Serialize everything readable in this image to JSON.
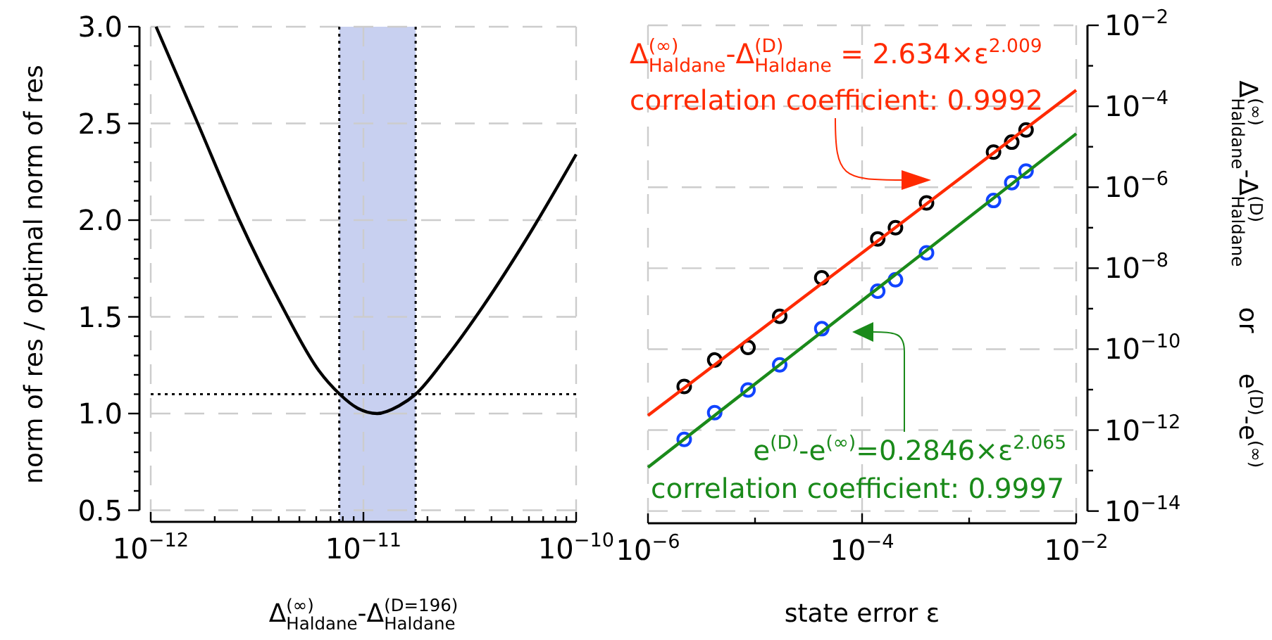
{
  "chart_data": [
    {
      "type": "line",
      "xlabel": "Δ$^{(∞)}$$_{Haldane}$-Δ$^{(D=196)}$$_{Haldane}$",
      "ylabel": "norm of res / optimal norm of res",
      "log": "x",
      "grid": true,
      "xlim": [
        1e-12,
        1e-10
      ],
      "xticks": [
        {
          "value": 1e-12,
          "label": "10$^{−12}$"
        },
        {
          "value": 2e-12,
          "label": null
        },
        {
          "value": 3e-12,
          "label": null
        },
        {
          "value": 4e-12,
          "label": null
        },
        {
          "value": 5e-12,
          "label": null
        },
        {
          "value": 6e-12,
          "label": null
        },
        {
          "value": 7e-12,
          "label": null
        },
        {
          "value": 8e-12,
          "label": null
        },
        {
          "value": 9e-12,
          "label": null
        },
        {
          "value": 1e-11,
          "label": "10$^{−11}$"
        },
        {
          "value": 2e-11,
          "label": null
        },
        {
          "value": 3e-11,
          "label": null
        },
        {
          "value": 4e-11,
          "label": null
        },
        {
          "value": 5e-11,
          "label": null
        },
        {
          "value": 6e-11,
          "label": null
        },
        {
          "value": 7e-11,
          "label": null
        },
        {
          "value": 8e-11,
          "label": null
        },
        {
          "value": 9e-11,
          "label": null
        },
        {
          "value": 1e-10,
          "label": "10$^{−10}$"
        }
      ],
      "ylim": [
        0.44,
        3.0
      ],
      "yticks": [
        0.5,
        {
          "value": 0.6,
          "label": null
        },
        {
          "value": 0.7,
          "label": null
        },
        {
          "value": 0.8,
          "label": null
        },
        {
          "value": 0.9,
          "label": null
        },
        {
          "value": 1,
          "label": "1.0"
        },
        {
          "value": 1.1,
          "label": null
        },
        {
          "value": 1.2,
          "label": null
        },
        {
          "value": 1.3,
          "label": null
        },
        {
          "value": 1.4,
          "label": null
        },
        1.5,
        {
          "value": 1.6,
          "label": null
        },
        {
          "value": 1.7,
          "label": null
        },
        {
          "value": 1.8,
          "label": null
        },
        {
          "value": 1.9,
          "label": null
        },
        {
          "value": 2,
          "label": "2.0"
        },
        {
          "value": 2.1,
          "label": null
        },
        {
          "value": 2.2,
          "label": null
        },
        {
          "value": 2.3,
          "label": null
        },
        {
          "value": 2.4,
          "label": null
        },
        2.5,
        {
          "value": 2.6,
          "label": null
        },
        {
          "value": 2.7,
          "label": null
        },
        {
          "value": 2.8,
          "label": null
        },
        {
          "value": 2.9,
          "label": null
        },
        {
          "value": 3,
          "label": "3.0"
        }
      ],
      "x": [
        1.06e-12,
        1.65e-12,
        2.61e-12,
        4.12e-12,
        6.19e-12,
        7.74e-12,
        9.31e-12,
        1.16e-11,
        1.47e-11,
        1.76e-11,
        2.45e-11,
        3.68e-11,
        5.82e-11,
        1e-10
      ],
      "series": [
        {
          "color": "#000000",
          "values": [
            3.0,
            2.51,
            2.0,
            1.56,
            1.22,
            1.1,
            1.03,
            1.0,
            1.04,
            1.1,
            1.29,
            1.56,
            1.9,
            2.34
          ]
        }
      ],
      "ref_lines": [
        {
          "axis": "y",
          "value": 1.1,
          "line_style": "dotted",
          "color": "#000000"
        },
        {
          "axis": "x",
          "value": 7.7e-12,
          "line_style": "dotted",
          "color": "#000000"
        },
        {
          "axis": "x",
          "value": 1.76e-11,
          "line_style": "dotted",
          "color": "#000000"
        }
      ],
      "bands": [
        {
          "axis": "x",
          "from": 7.7e-12,
          "to": 1.76e-11,
          "color": "#c8d0f0"
        }
      ]
    },
    {
      "type": "scatter",
      "xlabel": "state error ε",
      "ylabel": "Δ$^{(∞)}$$_{Haldane}$-Δ$^{(D)}$$_{Haldane}$     or     e$^{(D)}$-e$^{(∞)}$",
      "log": "xy",
      "grid": true,
      "xlim": [
        1e-06,
        0.01
      ],
      "xticks": [
        {
          "value": 1e-06,
          "label": "10$^{−6}$"
        },
        {
          "value": 1e-05,
          "label": null
        },
        {
          "value": 0.0001,
          "label": "10$^{−4}$"
        },
        {
          "value": 0.001,
          "label": null
        },
        {
          "value": 0.01,
          "label": "10$^{−2}$"
        }
      ],
      "ylim": [
        5e-15,
        0.01
      ],
      "yticks": [
        {
          "value": 0.01,
          "label": "10$^{−2}$"
        },
        {
          "value": 0.001,
          "label": null
        },
        {
          "value": 0.0001,
          "label": "10$^{−4}$"
        },
        {
          "value": 1e-05,
          "label": null
        },
        {
          "value": 1e-06,
          "label": "10$^{−6}$"
        },
        {
          "value": 1e-07,
          "label": null
        },
        {
          "value": 1e-08,
          "label": "10$^{−8}$"
        },
        {
          "value": 1e-09,
          "label": null
        },
        {
          "value": 1e-10,
          "label": "10$^{−10}$"
        },
        {
          "value": 1e-11,
          "label": null
        },
        {
          "value": 1e-12,
          "label": "10$^{−12}$"
        },
        {
          "value": 1e-13,
          "label": null
        },
        {
          "value": 1e-14,
          "label": "10$^{−14}$"
        }
      ],
      "annotations": [
        "Δ$^{(∞)}$$_{Haldane}$-Δ$^{(D)}$$_{Haldane}$ = 2.634×ε$^{2.009}$",
        "correlation coefficient: 0.9992",
        "e$^{(D)}$-e$^{(∞)}$=0.2846×ε$^{2.065}$",
        "correlation coefficient: 0.9997"
      ],
      "series": [
        {
          "marker": "circle",
          "color": "#000000",
          "x": [
            2.18e-06,
            4.2e-06,
            8.6e-06,
            1.7e-05,
            4.2e-05,
            0.00014,
            0.000205,
            0.0004,
            0.00169,
            0.0025,
            0.0034
          ],
          "values": [
            1.2e-11,
            5.4e-11,
            1.1e-10,
            6.5e-10,
            5.8e-09,
            5.3e-08,
            1e-07,
            4.1e-07,
            7.4e-06,
            1.3e-05,
            2.6e-05
          ]
        },
        {
          "marker": "circle",
          "color": "#1144ff",
          "x": [
            2.18e-06,
            4.2e-06,
            8.6e-06,
            1.7e-05,
            4.2e-05,
            0.00014,
            0.000205,
            0.0004,
            0.00169,
            0.0025,
            0.0034
          ],
          "values": [
            5.9e-13,
            2.7e-12,
            9.8e-12,
            4.1e-11,
            3.2e-10,
            2.7e-09,
            5.2e-09,
            2.4e-08,
            4.7e-07,
            1.3e-06,
            2.5e-06
          ]
        },
        {
          "type": "line",
          "color": "#ff2a00",
          "x": [
            1e-06,
            0.01
          ],
          "values": [
            2.3e-12,
            0.00025
          ]
        },
        {
          "type": "line",
          "color": "#1a8a1a",
          "x": [
            1e-06,
            0.01
          ],
          "values": [
            1.2e-13,
            2.1e-05
          ]
        }
      ]
    }
  ]
}
